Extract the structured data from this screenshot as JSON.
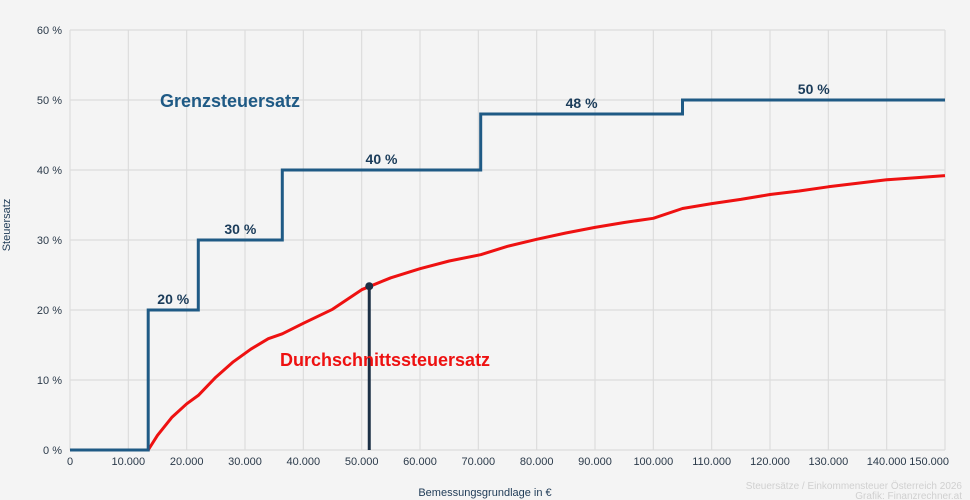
{
  "chart_data": {
    "type": "line",
    "title": "",
    "xlabel": "Bemessungsgrundlage in €",
    "ylabel": "Steuersatz",
    "xlim": [
      0,
      150000
    ],
    "ylim": [
      0,
      60
    ],
    "grid": true,
    "x_ticks": [
      0,
      10000,
      20000,
      30000,
      40000,
      50000,
      60000,
      70000,
      80000,
      90000,
      100000,
      110000,
      120000,
      130000,
      140000,
      150000
    ],
    "x_tick_labels": [
      "0",
      "10.000",
      "20.000",
      "30.000",
      "40.000",
      "50.000",
      "60.000",
      "70.000",
      "80.000",
      "90.000",
      "100.000",
      "110.000",
      "120.000",
      "130.000",
      "140.000",
      "150.000"
    ],
    "y_ticks": [
      0,
      10,
      20,
      30,
      40,
      50,
      60
    ],
    "y_tick_labels": [
      "0 %",
      "10 %",
      "20 %",
      "30 %",
      "40 %",
      "50 %",
      "60 %"
    ],
    "series": [
      {
        "name": "Grenzsteuersatz",
        "type": "step",
        "color": "#1f5a85",
        "x": [
          0,
          13400,
          13400,
          22000,
          22000,
          36400,
          36400,
          70400,
          70400,
          105000,
          105000,
          150000
        ],
        "values": [
          0,
          0,
          20,
          20,
          30,
          30,
          40,
          40,
          48,
          48,
          50,
          50
        ],
        "step_labels": [
          {
            "text": "20 %",
            "x": 17700,
            "y": 20
          },
          {
            "text": "30 %",
            "x": 29200,
            "y": 30
          },
          {
            "text": "40 %",
            "x": 53400,
            "y": 40
          },
          {
            "text": "48 %",
            "x": 87700,
            "y": 48
          },
          {
            "text": "50 %",
            "x": 127500,
            "y": 50
          }
        ]
      },
      {
        "name": "Durchschnittssteuersatz",
        "type": "line",
        "color": "#ee1111",
        "x": [
          0,
          13400,
          15000,
          17500,
          20000,
          22000,
          25000,
          28000,
          31000,
          34000,
          36400,
          40000,
          45000,
          50000,
          55000,
          60000,
          65000,
          70400,
          75000,
          80000,
          85000,
          90000,
          95000,
          100000,
          105000,
          110000,
          115000,
          120000,
          125000,
          130000,
          135000,
          140000,
          145000,
          150000
        ],
        "values": [
          0,
          0,
          2.1,
          4.7,
          6.6,
          7.8,
          10.4,
          12.6,
          14.4,
          15.9,
          16.6,
          18.1,
          20.1,
          22.9,
          24.6,
          25.9,
          27.0,
          27.9,
          29.1,
          30.1,
          31.0,
          31.8,
          32.5,
          33.1,
          34.5,
          35.2,
          35.8,
          36.5,
          37.0,
          37.6,
          38.1,
          38.6,
          38.9,
          39.2
        ]
      }
    ],
    "markers": [
      {
        "x": 51300,
        "y": 23.4,
        "color": "#1b2f45",
        "vertical_line_to_axis": true
      }
    ],
    "annotations": [
      {
        "text": "Grenzsteuersatz",
        "x": 13500,
        "y": 50,
        "color": "#1f5a85"
      },
      {
        "text": "Durchschnittssteuersatz",
        "x": 36000,
        "y": 13,
        "color": "#ee1111"
      }
    ],
    "watermark": [
      "Steuersätze / Einkommensteuer Österreich 2026",
      "Grafik: Finanzrechner.at"
    ]
  },
  "labels": {
    "ylabel": "Steuersatz",
    "xlabel": "Bemessungsgrundlage in €",
    "series_grenz": "Grenzsteuersatz",
    "series_durch": "Durchschnittssteuersatz",
    "watermark_line1": "Steuersätze / Einkommensteuer Österreich 2026",
    "watermark_line2": "Grafik: Finanzrechner.at"
  },
  "colors": {
    "grenz": "#1f5a85",
    "durch": "#ee1111",
    "marker": "#1b2f45",
    "grid": "#dcdcdc",
    "background": "#f4f4f4"
  }
}
